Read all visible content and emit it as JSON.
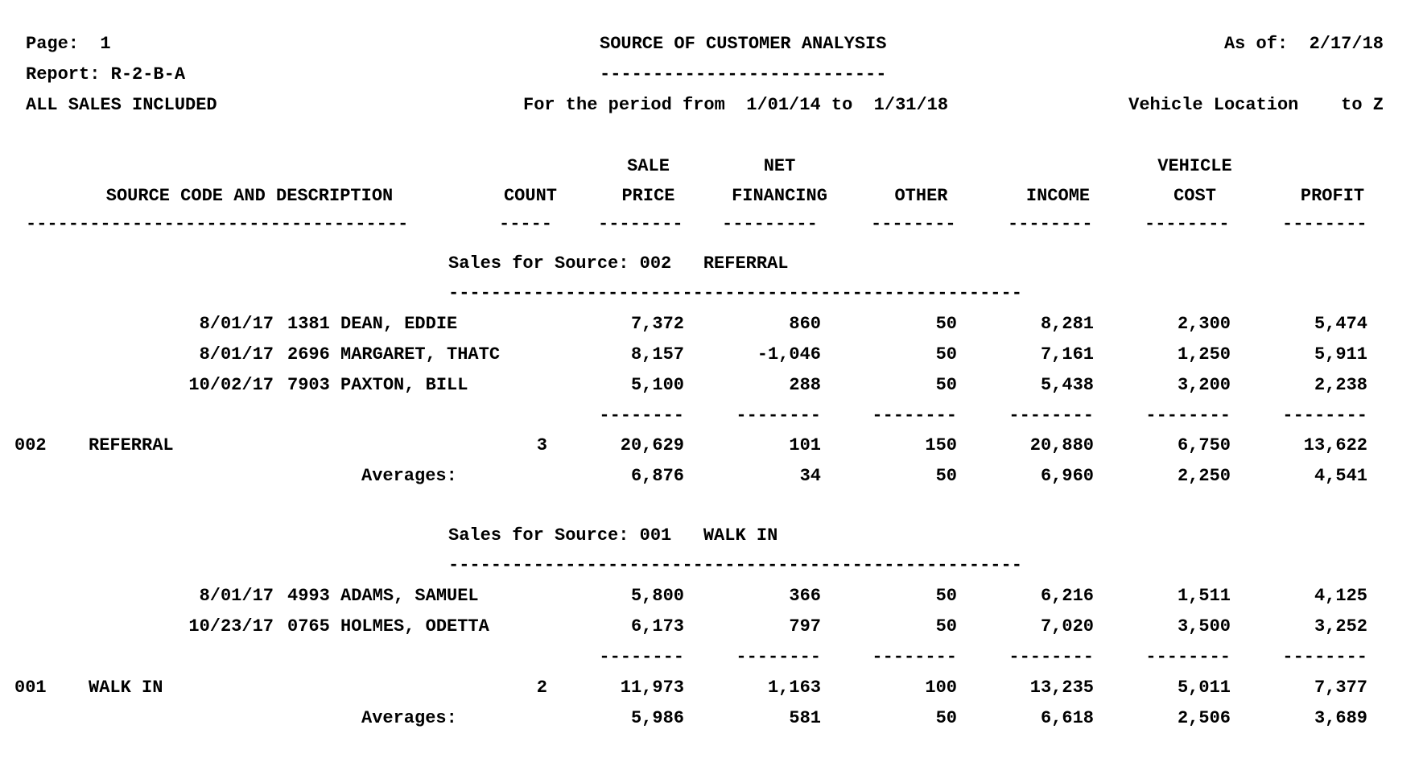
{
  "header": {
    "page": "Page:  1",
    "report": "Report: R-2-B-A",
    "scope": "ALL SALES INCLUDED",
    "title": "SOURCE OF CUSTOMER ANALYSIS",
    "title_rule": "---------------------------",
    "as_of": "As of:  2/17/18",
    "period": "For the period from  1/01/14 to  1/31/18",
    "location": "Vehicle Location    to Z"
  },
  "columns": {
    "description": "SOURCE CODE AND DESCRIPTION",
    "count": "COUNT",
    "sale_top": "SALE",
    "sale_bottom": "PRICE",
    "net_top": "NET",
    "net_bottom": "FINANCING",
    "other": "OTHER",
    "income": "INCOME",
    "vcost_top": "VEHICLE",
    "vcost_bottom": "COST",
    "profit": "PROFIT",
    "rules": {
      "description": "------------------------------------",
      "count": "-----",
      "sale": "--------",
      "net": "---------",
      "other": "--------",
      "income": "--------",
      "vcost": "--------",
      "profit": "--------"
    }
  },
  "groups": [
    {
      "heading": "Sales for Source: 002   REFERRAL",
      "heading_rule": "------------------------------------------------------",
      "rows": [
        {
          "date": "8/01/17",
          "customer": "1381 DEAN, EDDIE",
          "sale": "7,372",
          "net": "860",
          "other": "50",
          "income": "8,281",
          "vcost": "2,300",
          "profit": "5,474"
        },
        {
          "date": "8/01/17",
          "customer": "2696 MARGARET, THATC",
          "sale": "8,157",
          "net": "-1,046",
          "other": "50",
          "income": "7,161",
          "vcost": "1,250",
          "profit": "5,911"
        },
        {
          "date": "10/02/17",
          "customer": "7903 PAXTON, BILL",
          "sale": "5,100",
          "net": "288",
          "other": "50",
          "income": "5,438",
          "vcost": "3,200",
          "profit": "2,238"
        }
      ],
      "sum_rule": "--------",
      "total": {
        "code": "002",
        "name": "REFERRAL",
        "count": "3",
        "sale": "20,629",
        "net": "101",
        "other": "150",
        "income": "20,880",
        "vcost": "6,750",
        "profit": "13,622"
      },
      "averages": {
        "label": "Averages:",
        "sale": "6,876",
        "net": "34",
        "other": "50",
        "income": "6,960",
        "vcost": "2,250",
        "profit": "4,541"
      }
    },
    {
      "heading": "Sales for Source: 001   WALK IN",
      "heading_rule": "------------------------------------------------------",
      "rows": [
        {
          "date": "8/01/17",
          "customer": "4993 ADAMS, SAMUEL",
          "sale": "5,800",
          "net": "366",
          "other": "50",
          "income": "6,216",
          "vcost": "1,511",
          "profit": "4,125"
        },
        {
          "date": "10/23/17",
          "customer": "0765 HOLMES, ODETTA",
          "sale": "6,173",
          "net": "797",
          "other": "50",
          "income": "7,020",
          "vcost": "3,500",
          "profit": "3,252"
        }
      ],
      "sum_rule": "--------",
      "total": {
        "code": "001",
        "name": "WALK IN",
        "count": "2",
        "sale": "11,973",
        "net": "1,163",
        "other": "100",
        "income": "13,235",
        "vcost": "5,011",
        "profit": "7,377"
      },
      "averages": {
        "label": "Averages:",
        "sale": "5,986",
        "net": "581",
        "other": "50",
        "income": "6,618",
        "vcost": "2,506",
        "profit": "3,689"
      }
    }
  ]
}
